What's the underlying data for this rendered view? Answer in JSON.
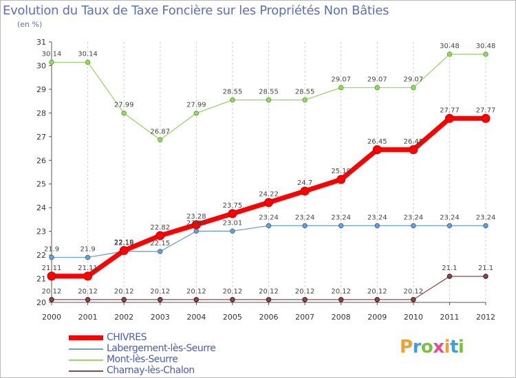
{
  "title": "Evolution du Taux de Taxe Foncière sur les Propriétés Non Bâties",
  "unit_label": "(en %)",
  "logo": {
    "letters": [
      "P",
      "r",
      "o",
      "x",
      "i",
      "t",
      "i"
    ],
    "colors": [
      "#f0a030",
      "#3aa0e0",
      "#7cc040",
      "#e84c8c",
      "#f0a030",
      "#3aa0e0",
      "#7cc040"
    ]
  },
  "chart_data": {
    "type": "line",
    "x": [
      "2000",
      "2001",
      "2002",
      "2003",
      "2004",
      "2005",
      "2006",
      "2007",
      "2008",
      "2009",
      "2010",
      "2011",
      "2012"
    ],
    "ylim": [
      20,
      31
    ],
    "yticks": [
      "20",
      "21",
      "22",
      "23",
      "24",
      "25",
      "26",
      "27",
      "28",
      "29",
      "30",
      "31"
    ],
    "grid": "vertical-dashed",
    "series": [
      {
        "name": "CHIVRES",
        "color": "#ff0000",
        "emphasis": true,
        "values": [
          21.11,
          21.11,
          22.19,
          22.82,
          23.28,
          23.75,
          24.22,
          24.7,
          25.19,
          26.45,
          26.45,
          27.77,
          27.77
        ],
        "labels": [
          "21.11",
          "21.11",
          "22.19",
          "22.82",
          "23.28",
          "23.75",
          "24.22",
          "24.7",
          "25.19",
          "26.45",
          "26.45",
          "27.77",
          "27.77"
        ]
      },
      {
        "name": "Labergement-lès-Seurre",
        "color": "#6f9fd0",
        "values": [
          21.9,
          21.9,
          22.16,
          22.15,
          23.01,
          23.01,
          23.24,
          23.24,
          23.24,
          23.24,
          23.24,
          23.24,
          23.24
        ],
        "labels": [
          "21.9",
          "21.9",
          "22.16",
          "22.15",
          "23.01",
          "23.01",
          "23.24",
          "23.24",
          "23.24",
          "23.24",
          "23.24",
          "23.24",
          "23.24"
        ]
      },
      {
        "name": "Mont-lès-Seurre",
        "color": "#99d66a",
        "values": [
          30.14,
          30.14,
          27.99,
          26.87,
          27.99,
          28.55,
          28.55,
          28.55,
          29.07,
          29.07,
          29.07,
          30.48,
          30.48
        ],
        "labels": [
          "30.14",
          "30.14",
          "27.99",
          "26.87",
          "27.99",
          "28.55",
          "28.55",
          "28.55",
          "29.07",
          "29.07",
          "29.07",
          "30.48",
          "30.48"
        ]
      },
      {
        "name": "Charnay-lès-Chalon",
        "color": "#8b4a4a",
        "values": [
          20.12,
          20.12,
          20.12,
          20.12,
          20.12,
          20.12,
          20.12,
          20.12,
          20.12,
          20.12,
          20.12,
          21.1,
          21.1
        ],
        "labels": [
          "20.12",
          "20.12",
          "20.12",
          "20.12",
          "20.12",
          "20.12",
          "20.12",
          "20.12",
          "20.12",
          "20.12",
          "20.12",
          "21.1",
          "21.1"
        ]
      }
    ]
  }
}
